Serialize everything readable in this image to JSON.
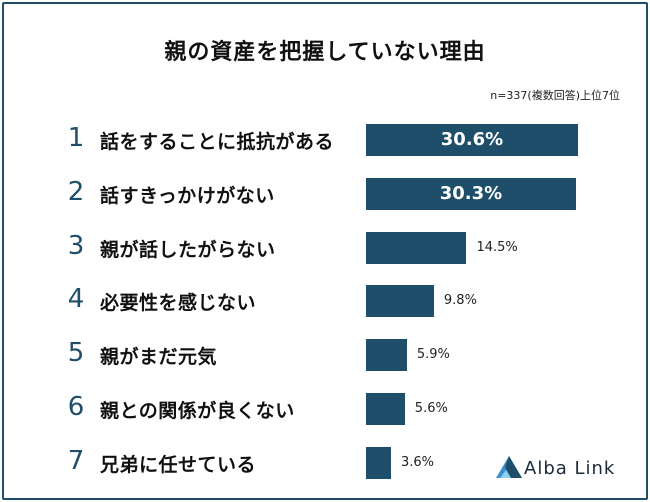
{
  "title": "親の資産を把握していない理由",
  "note": "n=337(複数回答)上位7位",
  "colors": {
    "bar": "#1f4e6b",
    "rank": "#1f4e6b"
  },
  "chart_data": {
    "type": "bar",
    "orientation": "horizontal",
    "title": "親の資産を把握していない理由",
    "unit": "%",
    "ranks": [
      "1",
      "2",
      "3",
      "4",
      "5",
      "6",
      "7"
    ],
    "categories": [
      "話をすることに抵抗がある",
      "話すきっかけがない",
      "親が話したがらない",
      "必要性を感じない",
      "親がまだ元気",
      "親との関係が良くない",
      "兄弟に任せている"
    ],
    "values": [
      30.6,
      30.3,
      14.5,
      9.8,
      5.9,
      5.6,
      3.6
    ],
    "value_labels": [
      "30.6%",
      "30.3%",
      "14.5%",
      "9.8%",
      "5.9%",
      "5.6%",
      "3.6%"
    ],
    "xlim": [
      0,
      31
    ],
    "grid": false,
    "legend": "none"
  },
  "brand": {
    "name": "Alba Link",
    "icon": "alba-link-logo-icon"
  }
}
